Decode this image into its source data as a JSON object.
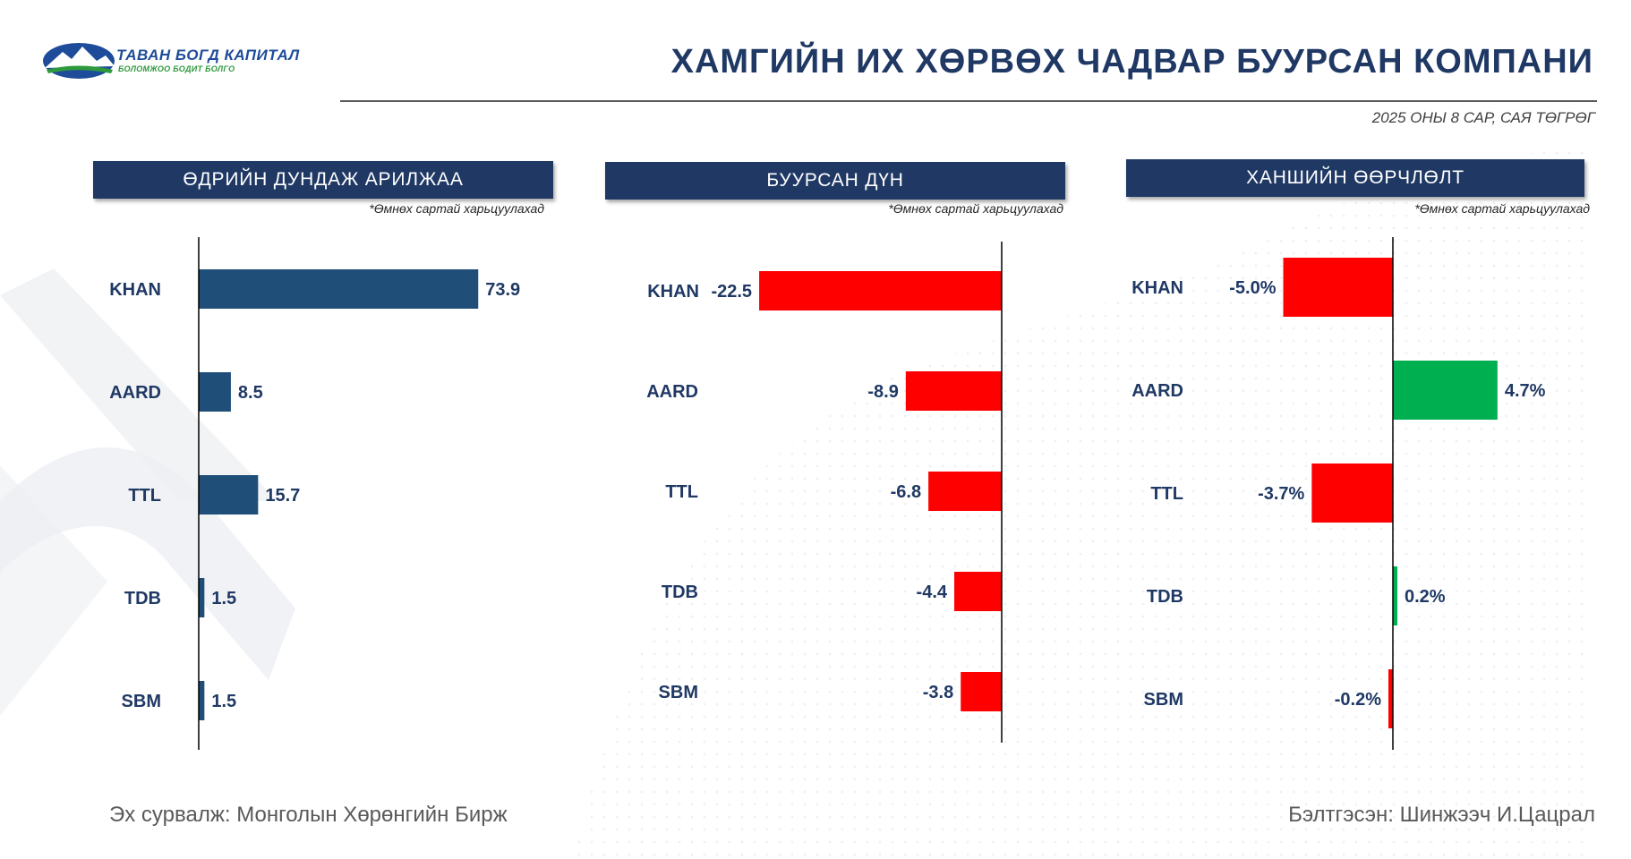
{
  "logo": {
    "name": "ТАВАН БОГД КАПИТАЛ",
    "tagline": "БОЛОМЖОО БОДИТ БОЛГО",
    "colors": {
      "blue": "#1e4c9a",
      "green": "#2f9a3c"
    }
  },
  "header": {
    "title": "ХАМГИЙН ИХ ХӨРВӨХ ЧАДВАР БУУРСАН КОМПАНИ",
    "subtitle": "2025 ОНЫ 8 САР, САЯ ТӨГРӨГ"
  },
  "colors": {
    "navy": "#1f4e79",
    "header_bg": "#1f3864",
    "negative": "#ff0000",
    "positive": "#00b050"
  },
  "chart_data": [
    {
      "type": "bar",
      "orientation": "horizontal",
      "title": "ӨДРИЙН ДУНДАЖ АРИЛЖАА",
      "note": "*Өмнөх сартай харьцуулахад",
      "categories": [
        "KHAN",
        "AARD",
        "TTL",
        "TDB",
        "SBM"
      ],
      "values": [
        73.9,
        8.5,
        15.7,
        1.5,
        1.5
      ],
      "value_labels": [
        "73.9",
        "8.5",
        "15.7",
        "1.5",
        "1.5"
      ],
      "color": "navy",
      "xlim": [
        0,
        80
      ]
    },
    {
      "type": "bar",
      "orientation": "horizontal",
      "title": "БУУРСАН ДҮН",
      "note": "*Өмнөх сартай харьцуулахад",
      "categories": [
        "KHAN",
        "AARD",
        "TTL",
        "TDB",
        "SBM"
      ],
      "values": [
        -22.5,
        -8.9,
        -6.8,
        -4.4,
        -3.8
      ],
      "value_labels": [
        "-22.5",
        "-8.9",
        "-6.8",
        "-4.4",
        "-3.8"
      ],
      "color": "negative",
      "xlim": [
        -24,
        0
      ]
    },
    {
      "type": "bar",
      "orientation": "horizontal",
      "title": "ХАНШИЙН ӨӨРЧЛӨЛТ",
      "note": "*Өмнөх сартай харьцуулахад",
      "categories": [
        "KHAN",
        "AARD",
        "TTL",
        "TDB",
        "SBM"
      ],
      "values": [
        -5.0,
        4.7,
        -3.7,
        0.2,
        -0.2
      ],
      "value_labels": [
        "-5.0%",
        "4.7%",
        "-3.7%",
        "0.2%",
        "-0.2%"
      ],
      "color": "sign",
      "xlim": [
        -8,
        7
      ]
    }
  ],
  "footer": {
    "source": "Эх сурвалж: Монголын Хөрөнгийн Бирж",
    "prepared_by": "Бэлтгэсэн: Шинжээч И.Цацрал"
  }
}
